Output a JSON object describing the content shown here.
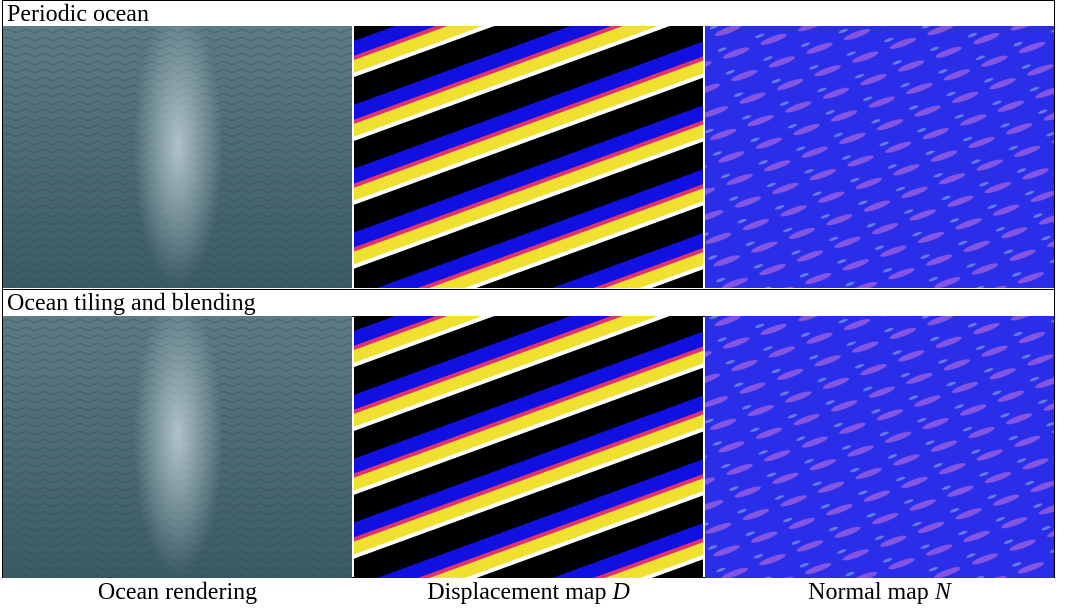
{
  "rows": [
    {
      "label": "Periodic ocean"
    },
    {
      "label": "Ocean tiling and blending"
    }
  ],
  "columns": [
    {
      "text": "Ocean rendering",
      "symbol": null
    },
    {
      "text": "Displacement map",
      "symbol": "D"
    },
    {
      "text": "Normal map",
      "symbol": "N"
    }
  ]
}
